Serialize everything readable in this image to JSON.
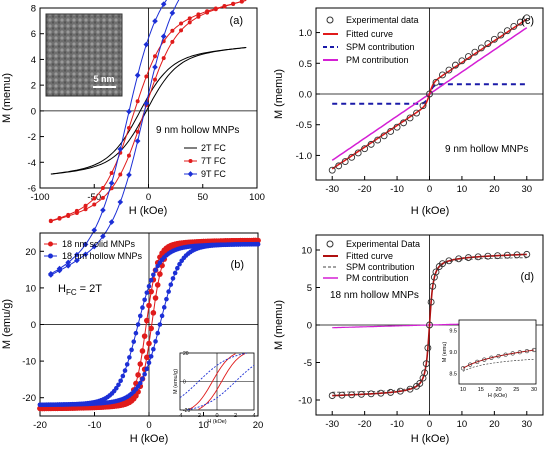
{
  "chart_data": [
    {
      "type": "line",
      "panel_label": "(a)",
      "xlabel": "H (kOe)",
      "ylabel": "M (memu)",
      "xlim": [
        -100,
        100
      ],
      "ylim": [
        -6,
        8
      ],
      "xticks": [
        -100,
        -50,
        0,
        50,
        100
      ],
      "yticks": [
        -6,
        -4,
        -2,
        0,
        2,
        4,
        6,
        8
      ],
      "annotation": "9 nm hollow MNPs",
      "inset_label": "5 nm",
      "series": [
        {
          "name": "2T FC",
          "color": "#000000",
          "marker": "none",
          "ms": 10,
          "coercivity": 3,
          "bias": -5
        },
        {
          "name": "7T FC",
          "color": "#e01b1b",
          "marker": "circle",
          "ms": 16,
          "coercivity": 5,
          "bias": -9
        },
        {
          "name": "9T FC",
          "color": "#1c2fd6",
          "marker": "diamond",
          "ms": 22,
          "coercivity": 8,
          "bias": -12
        }
      ]
    },
    {
      "type": "line",
      "panel_label": "(c)",
      "xlabel": "H (kOe)",
      "ylabel": "M (memu)",
      "xlim": [
        -35,
        35
      ],
      "ylim": [
        -1.4,
        1.4
      ],
      "xticks": [
        -30,
        -20,
        -10,
        0,
        10,
        20,
        30
      ],
      "yticks": [
        -1.0,
        -0.5,
        0.0,
        0.5,
        1.0
      ],
      "annotation": "9 nm hollow MNPs",
      "legend": [
        "Experimental data",
        "Fitted curve",
        "SPM contribution",
        "PM contribution"
      ],
      "experimental_x": [
        -30,
        -28,
        -26,
        -24,
        -22,
        -20,
        -18,
        -16,
        -14,
        -12,
        -10,
        -8,
        -6,
        -4,
        -2,
        0,
        2,
        4,
        6,
        8,
        10,
        12,
        14,
        16,
        18,
        20,
        22,
        24,
        26,
        28,
        30
      ],
      "experimental_y": [
        -1.24,
        -1.17,
        -1.1,
        -1.03,
        -0.96,
        -0.89,
        -0.82,
        -0.75,
        -0.68,
        -0.61,
        -0.54,
        -0.47,
        -0.39,
        -0.31,
        -0.19,
        0.0,
        0.19,
        0.31,
        0.39,
        0.47,
        0.54,
        0.61,
        0.68,
        0.75,
        0.82,
        0.89,
        0.96,
        1.03,
        1.1,
        1.17,
        1.24
      ],
      "spm_saturation": 0.16,
      "pm_slope": 0.036
    },
    {
      "type": "scatter",
      "panel_label": "(b)",
      "xlabel": "H (kOe)",
      "ylabel": "M (emu/g)",
      "xlim": [
        -20,
        20
      ],
      "ylim": [
        -25,
        25
      ],
      "xticks": [
        -20,
        -10,
        0,
        10,
        20
      ],
      "yticks": [
        -20,
        -10,
        0,
        10,
        20
      ],
      "annotation": "H_FC = 2T",
      "series": [
        {
          "name": "18 nm solid MNPs",
          "color": "#e01b1b",
          "ms": 23,
          "hc": 0.5,
          "w": 2.0
        },
        {
          "name": "18 nm hollow MNPs",
          "color": "#1c2fd6",
          "ms": 22,
          "hc": 2.0,
          "w": 3.5
        }
      ],
      "inset": {
        "xlabel": "H (kOe)",
        "ylabel": "M (emu/g)",
        "xticks": [
          -4,
          -2,
          0,
          2,
          4
        ],
        "yticks": [
          -20,
          -15,
          -10,
          -5,
          0,
          5,
          10,
          15,
          20
        ]
      }
    },
    {
      "type": "line",
      "panel_label": "(d)",
      "xlabel": "H (kOe)",
      "ylabel": "M (memu)",
      "xlim": [
        -35,
        35
      ],
      "ylim": [
        -12,
        12
      ],
      "xticks": [
        -30,
        -20,
        -10,
        0,
        10,
        20,
        30
      ],
      "yticks": [
        -10,
        -5,
        0,
        5,
        10
      ],
      "annotation": "18 nm hollow MNPs",
      "legend": [
        "Experimental Data",
        "Fitted curve",
        "SPM contribution",
        "PM contribution"
      ],
      "experimental_x": [
        -30,
        -27,
        -24,
        -21,
        -18,
        -15,
        -12,
        -9,
        -6,
        -4,
        -3,
        -2,
        -1.5,
        -1,
        -0.5,
        0,
        0.5,
        1,
        1.5,
        2,
        3,
        4,
        6,
        9,
        12,
        15,
        18,
        21,
        24,
        27,
        30
      ],
      "ms": 9.2,
      "h0": 1.5,
      "pm_slope": 0.012,
      "inset": {
        "xlabel": "H (kOe)",
        "ylabel": "M (emu)",
        "xticks": [
          10,
          15,
          20,
          25,
          30
        ],
        "yticks": [
          8.5,
          9.0,
          9.5
        ]
      }
    }
  ]
}
